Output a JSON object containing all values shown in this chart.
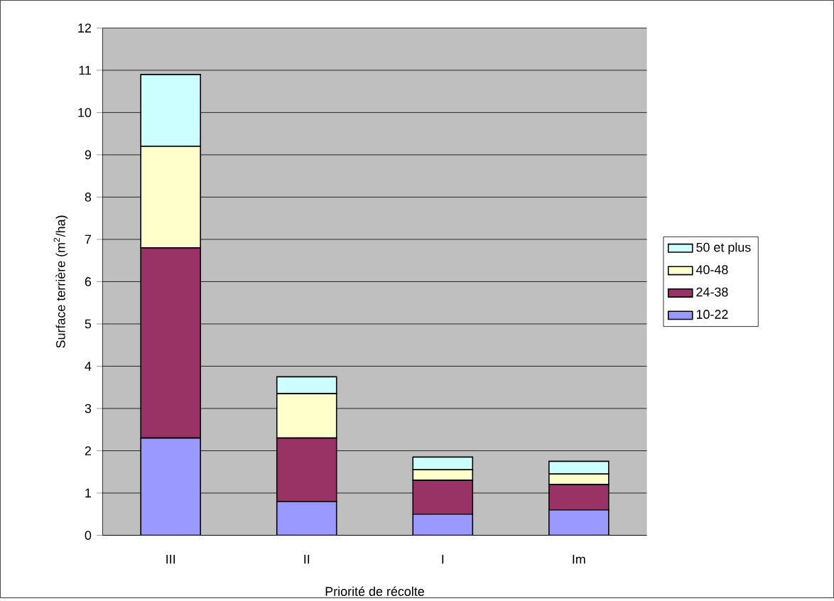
{
  "chart_data": {
    "type": "bar",
    "stacked": true,
    "xlabel": "Priorité de récolte",
    "ylabel": "Surface terrière (m$^{2}$/ha)",
    "categories": [
      "III",
      "II",
      "I",
      "Im"
    ],
    "series": [
      {
        "name": "10-22",
        "color": "#9999ff",
        "values": [
          2.3,
          0.8,
          0.5,
          0.6
        ]
      },
      {
        "name": "24-38",
        "color": "#993366",
        "values": [
          4.5,
          1.5,
          0.8,
          0.6
        ]
      },
      {
        "name": "40-48",
        "color": "#ffffcc",
        "values": [
          2.4,
          1.05,
          0.25,
          0.25
        ]
      },
      {
        "name": "50 et plus",
        "color": "#ccffff",
        "values": [
          1.7,
          0.4,
          0.3,
          0.3
        ]
      }
    ],
    "ylim": [
      0,
      12
    ],
    "yticks": [
      0,
      1,
      2,
      3,
      4,
      5,
      6,
      7,
      8,
      9,
      10,
      11,
      12
    ],
    "grid": "y",
    "legend": "right"
  }
}
